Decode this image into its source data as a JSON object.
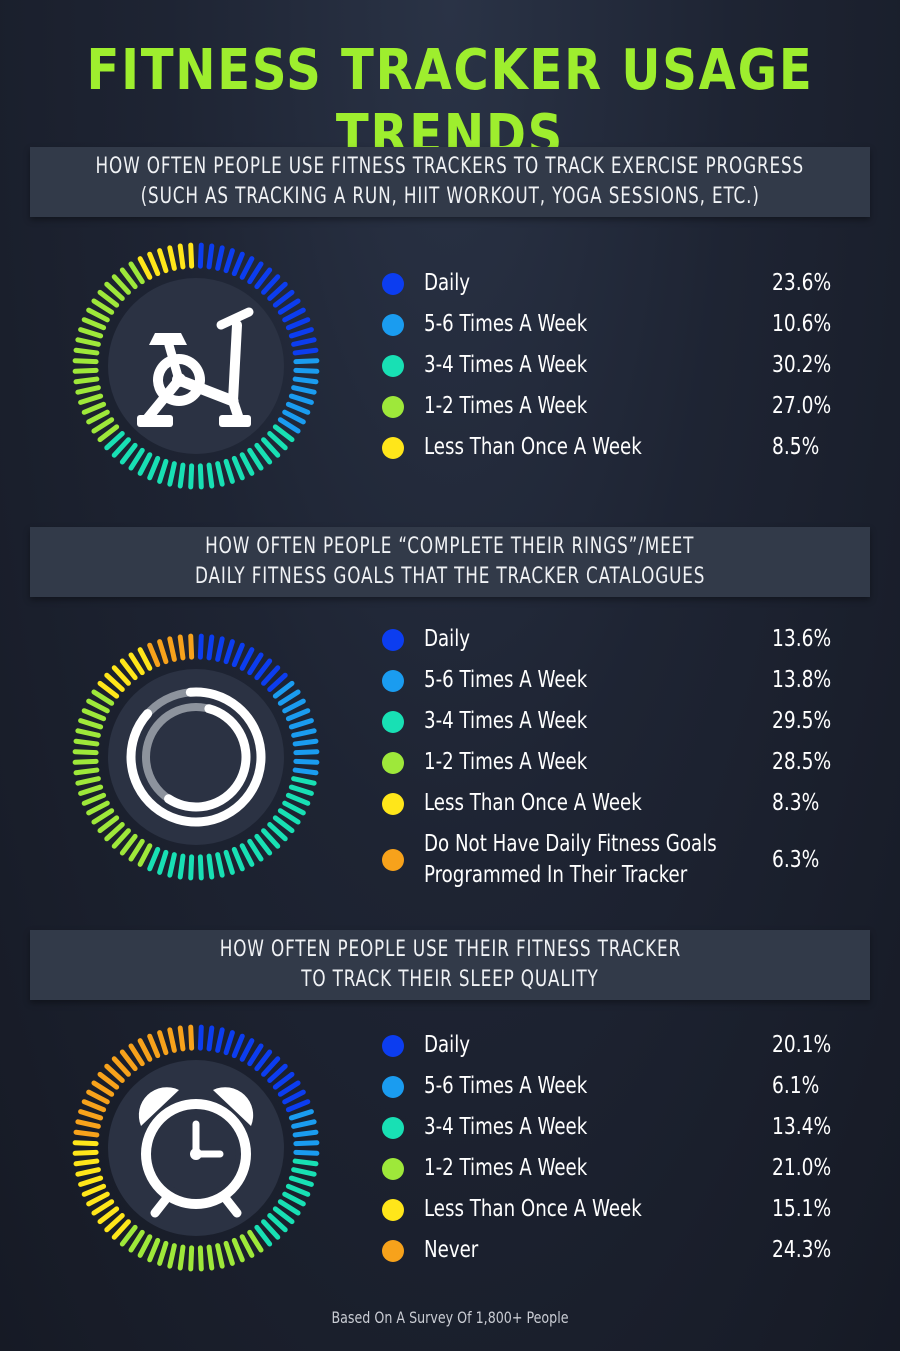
{
  "title": "FITNESS TRACKER USAGE TRENDS",
  "footer": "Based On A Survey Of 1,800+ People",
  "colors": {
    "daily": "#0c3df0",
    "five_six": "#1a9cf0",
    "three_four": "#18e0b4",
    "one_two": "#9ee83a",
    "less_than_once": "#ffe61a",
    "other": "#f7a21b",
    "heading": "#9eee2e",
    "panel": "#323a49"
  },
  "sections": [
    {
      "header_lines": [
        "HOW OFTEN PEOPLE USE FITNESS TRACKERS TO TRACK EXERCISE PROGRESS",
        "(SUCH AS TRACKING A RUN, HIIT WORKOUT, YOGA SESSIONS, ETC.)"
      ],
      "icon": "exercise-bike-icon"
    },
    {
      "header_lines": [
        "HOW OFTEN PEOPLE “COMPLETE THEIR RINGS”/MEET",
        "DAILY FITNESS GOALS THAT THE TRACKER CATALOGUES"
      ],
      "icon": "activity-rings-icon"
    },
    {
      "header_lines": [
        "HOW OFTEN PEOPLE USE THEIR FITNESS TRACKER",
        "TO TRACK THEIR SLEEP QUALITY"
      ],
      "icon": "alarm-clock-icon"
    }
  ],
  "chart_data": [
    {
      "type": "pie",
      "title": "HOW OFTEN PEOPLE USE FITNESS TRACKERS TO TRACK EXERCISE PROGRESS (SUCH AS TRACKING A RUN, HIIT WORKOUT, YOGA SESSIONS, ETC.)",
      "categories": [
        "Daily",
        "5-6 Times A Week",
        "3-4 Times A Week",
        "1-2 Times A Week",
        "Less Than Once A Week"
      ],
      "values": [
        23.6,
        10.6,
        30.2,
        27.0,
        8.5
      ],
      "value_labels": [
        "23.6%",
        "10.6%",
        "30.2%",
        "27.0%",
        "8.5%"
      ],
      "colors": [
        "#0c3df0",
        "#1a9cf0",
        "#18e0b4",
        "#9ee83a",
        "#ffe61a"
      ]
    },
    {
      "type": "pie",
      "title": "HOW OFTEN PEOPLE “COMPLETE THEIR RINGS”/MEET DAILY FITNESS GOALS THAT THE TRACKER CATALOGUES",
      "categories": [
        "Daily",
        "5-6 Times A Week",
        "3-4 Times A Week",
        "1-2 Times A Week",
        "Less Than Once A Week",
        "Do Not Have Daily Fitness Goals Programmed In Their Tracker"
      ],
      "category_lines": [
        [
          "Daily"
        ],
        [
          "5-6 Times A Week"
        ],
        [
          "3-4 Times A Week"
        ],
        [
          "1-2 Times A Week"
        ],
        [
          "Less Than Once A Week"
        ],
        [
          "Do Not Have Daily Fitness Goals",
          "Programmed In Their Tracker"
        ]
      ],
      "values": [
        13.6,
        13.8,
        29.5,
        28.5,
        8.3,
        6.3
      ],
      "value_labels": [
        "13.6%",
        "13.8%",
        "29.5%",
        "28.5%",
        "8.3%",
        "6.3%"
      ],
      "colors": [
        "#0c3df0",
        "#1a9cf0",
        "#18e0b4",
        "#9ee83a",
        "#ffe61a",
        "#f7a21b"
      ]
    },
    {
      "type": "pie",
      "title": "HOW OFTEN PEOPLE USE THEIR FITNESS TRACKER TO TRACK THEIR SLEEP QUALITY",
      "categories": [
        "Daily",
        "5-6 Times A Week",
        "3-4 Times A Week",
        "1-2 Times A Week",
        "Less Than Once A Week",
        "Never"
      ],
      "values": [
        20.1,
        6.1,
        13.4,
        21.0,
        15.1,
        24.3
      ],
      "value_labels": [
        "20.1%",
        "6.1%",
        "13.4%",
        "21.0%",
        "15.1%",
        "24.3%"
      ],
      "colors": [
        "#0c3df0",
        "#1a9cf0",
        "#18e0b4",
        "#9ee83a",
        "#ffe61a",
        "#f7a21b"
      ]
    }
  ]
}
